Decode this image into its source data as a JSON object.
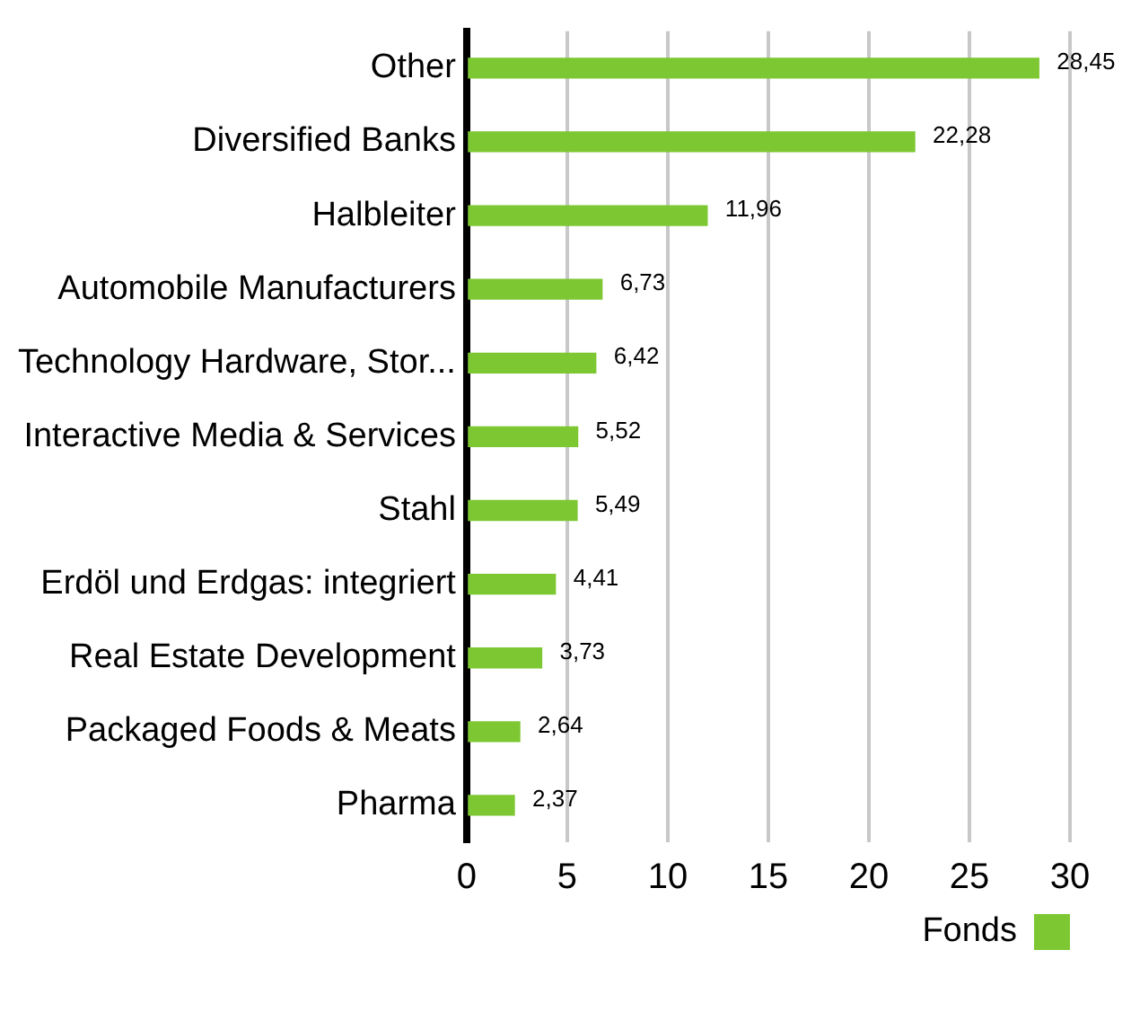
{
  "chart_data": {
    "type": "bar",
    "orientation": "horizontal",
    "categories": [
      "Other",
      "Diversified Banks",
      "Halbleiter",
      "Automobile Manufacturers",
      "Technology Hardware, Stor...",
      "Interactive Media & Services",
      "Stahl",
      "Erdöl und Erdgas: integriert",
      "Real Estate Development",
      "Packaged Foods & Meats",
      "Pharma"
    ],
    "series": [
      {
        "name": "Fonds",
        "color": "#7dc832",
        "values": [
          28.45,
          22.28,
          11.96,
          6.73,
          6.42,
          5.52,
          5.49,
          4.41,
          3.73,
          2.64,
          2.37
        ],
        "value_labels": [
          "28,45",
          "22,28",
          "11,96",
          "6,73",
          "6,42",
          "5,52",
          "5,49",
          "4,41",
          "3,73",
          "2,64",
          "2,37"
        ]
      }
    ],
    "xlim": [
      0,
      30
    ],
    "xticks": [
      0,
      5,
      10,
      15,
      20,
      25,
      30
    ],
    "grid": "x",
    "legend": "bottom"
  }
}
